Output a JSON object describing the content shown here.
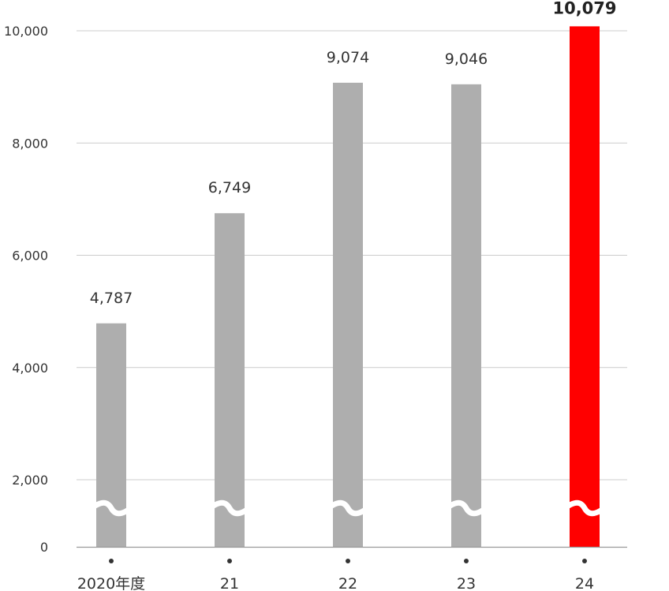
{
  "colors": {
    "bar": "#aeaeae",
    "highlight": "#ff0000",
    "grid": "#cccccc",
    "axis": "#999999",
    "text": "#333333",
    "background": "#ffffff"
  },
  "chart_data": {
    "type": "bar",
    "categories": [
      "2020年度",
      "21",
      "22",
      "23",
      "24"
    ],
    "values": [
      4787,
      6749,
      9074,
      9046,
      10079
    ],
    "value_labels": [
      "4,787",
      "6,749",
      "9,074",
      "9,046",
      "10,079"
    ],
    "highlight_index": 4,
    "ylim": [
      0,
      10000
    ],
    "axis_break": true,
    "y_ticks": [
      {
        "value": 0,
        "label": "0"
      },
      {
        "value": 2000,
        "label": "2,000"
      },
      {
        "value": 4000,
        "label": "4,000"
      },
      {
        "value": 6000,
        "label": "6,000"
      },
      {
        "value": 8000,
        "label": "8,000"
      },
      {
        "value": 10000,
        "label": "10,000"
      }
    ],
    "grid": true,
    "title": "",
    "xlabel": "",
    "ylabel": ""
  }
}
